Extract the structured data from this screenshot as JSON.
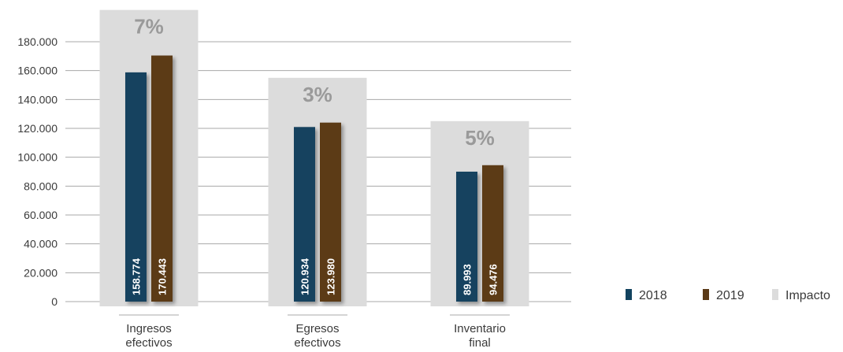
{
  "chart_data": {
    "type": "bar",
    "categories": [
      [
        "Ingresos",
        "efectivos"
      ],
      [
        "Egresos",
        "efectivos"
      ],
      [
        "Inventario",
        "final"
      ]
    ],
    "series": [
      {
        "name": "2018",
        "values": [
          158774,
          120934,
          89993
        ],
        "labels": [
          "158.774",
          "120.934",
          "89.993"
        ]
      },
      {
        "name": "2019",
        "values": [
          170443,
          123980,
          94476
        ],
        "labels": [
          "170.443",
          "123.980",
          "94.476"
        ]
      }
    ],
    "impact": {
      "name": "Impacto",
      "labels": [
        "7%",
        "3%",
        "5%"
      ],
      "band_top_values": [
        202000,
        155000,
        125000
      ]
    },
    "yticks": [
      0,
      20000,
      40000,
      60000,
      80000,
      100000,
      120000,
      140000,
      160000,
      180000
    ],
    "ytick_labels": [
      "0",
      "20.000",
      "40.000",
      "60.000",
      "80.000",
      "100.000",
      "120.000",
      "140.000",
      "160.000",
      "180.000"
    ],
    "ylim": [
      0,
      180000
    ],
    "grid": true,
    "legend_position": "bottom-right",
    "colors": {
      "s2018": "#12435f",
      "s2019": "#5b3a17",
      "impact": "#dcdcdc",
      "grid": "#a8a8a8",
      "impact_text": "#9a9a9a"
    }
  }
}
